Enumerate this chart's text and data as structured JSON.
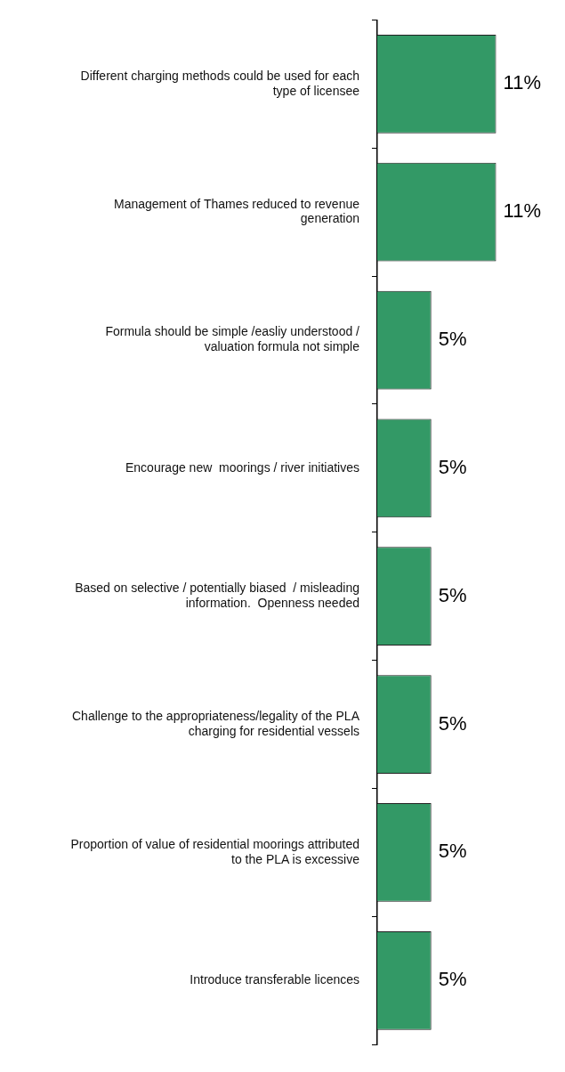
{
  "chart_data": {
    "type": "bar",
    "orientation": "horizontal",
    "categories": [
      "Different charging methods could be used for each type of licensee",
      "Management of Thames reduced to revenue generation",
      "Formula should be simple /easliy understood / valuation formula not simple",
      "Encourage new  moorings / river initiatives",
      "Based on selective / potentially biased  / misleading information.  Openness needed",
      "Challenge to the appropriateness/legality of the PLA charging for residential vessels",
      "Proportion of value of residential moorings attributed to the PLA is excessive",
      "Introduce transferable licences"
    ],
    "values": [
      11,
      11,
      5,
      5,
      5,
      5,
      5,
      5
    ],
    "value_labels": [
      "11%",
      "11%",
      "5%",
      "5%",
      "5%",
      "5%",
      "5%",
      "5%"
    ],
    "color": "#339966",
    "legend": false
  }
}
